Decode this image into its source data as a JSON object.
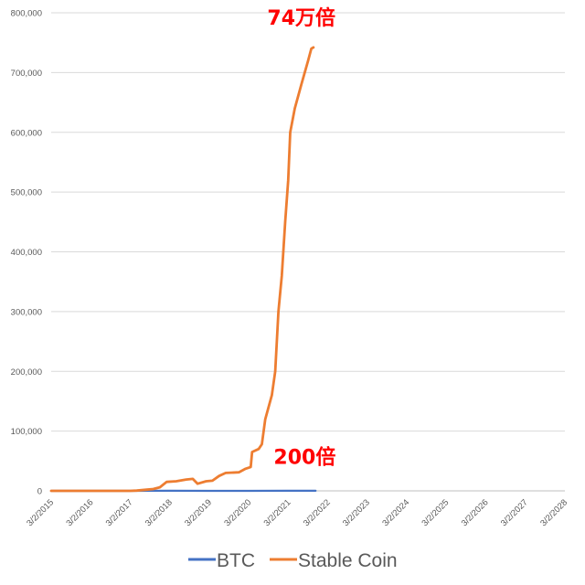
{
  "chart_data": {
    "type": "line",
    "title": "",
    "xlabel": "",
    "ylabel": "",
    "ylim": [
      0,
      800000
    ],
    "y_ticks": [
      "0",
      "100,000",
      "200,000",
      "300,000",
      "400,000",
      "500,000",
      "600,000",
      "700,000",
      "800,000"
    ],
    "x_ticks": [
      "3/2/2015",
      "3/2/2016",
      "3/2/2017",
      "3/2/2018",
      "3/2/2019",
      "3/2/2020",
      "3/2/2021",
      "3/2/2022",
      "3/2/2023",
      "3/2/2024",
      "3/2/2025",
      "3/2/2026",
      "3/2/2027",
      "3/2/2028"
    ],
    "grid": "horizontal",
    "legend_position": "bottom",
    "series": [
      {
        "name": "BTC",
        "color": "#4472c4",
        "points": [
          [
            "3/2/2015",
            1
          ],
          [
            "3/2/2017",
            10
          ],
          [
            "3/2/2018",
            80
          ],
          [
            "3/2/2019",
            30
          ],
          [
            "3/2/2020",
            60
          ],
          [
            "3/2/2021",
            180
          ],
          [
            "11/10/2021",
            200
          ]
        ]
      },
      {
        "name": "Stable Coin",
        "color": "#ed7d31",
        "points": [
          [
            "3/2/2015",
            1
          ],
          [
            "3/2/2016",
            10
          ],
          [
            "3/2/2017",
            50
          ],
          [
            "5/1/2017",
            500
          ],
          [
            "8/1/2017",
            2000
          ],
          [
            "10/1/2017",
            3000
          ],
          [
            "12/1/2017",
            6000
          ],
          [
            "2/1/2018",
            15000
          ],
          [
            "5/1/2018",
            16000
          ],
          [
            "8/1/2018",
            19000
          ],
          [
            "10/1/2018",
            20000
          ],
          [
            "11/15/2018",
            12000
          ],
          [
            "2/1/2019",
            16000
          ],
          [
            "4/1/2019",
            17000
          ],
          [
            "6/1/2019",
            25000
          ],
          [
            "8/1/2019",
            30000
          ],
          [
            "12/1/2019",
            31000
          ],
          [
            "2/1/2020",
            37000
          ],
          [
            "3/20/2020",
            40000
          ],
          [
            "4/1/2020",
            65000
          ],
          [
            "6/1/2020",
            70000
          ],
          [
            "7/1/2020",
            78000
          ],
          [
            "8/1/2020",
            120000
          ],
          [
            "10/1/2020",
            160000
          ],
          [
            "11/1/2020",
            200000
          ],
          [
            "12/1/2020",
            300000
          ],
          [
            "1/1/2021",
            360000
          ],
          [
            "2/1/2021",
            450000
          ],
          [
            "3/1/2021",
            520000
          ],
          [
            "3/20/2021",
            600000
          ],
          [
            "5/1/2021",
            640000
          ],
          [
            "7/1/2021",
            680000
          ],
          [
            "9/1/2021",
            720000
          ],
          [
            "10/1/2021",
            740000
          ],
          [
            "10/20/2021",
            742000
          ]
        ]
      }
    ],
    "annotations": [
      {
        "text": "74万倍",
        "x": "7/1/2021",
        "y": 780000
      },
      {
        "text": "200倍",
        "x": "8/1/2021",
        "y": 45000
      }
    ]
  }
}
